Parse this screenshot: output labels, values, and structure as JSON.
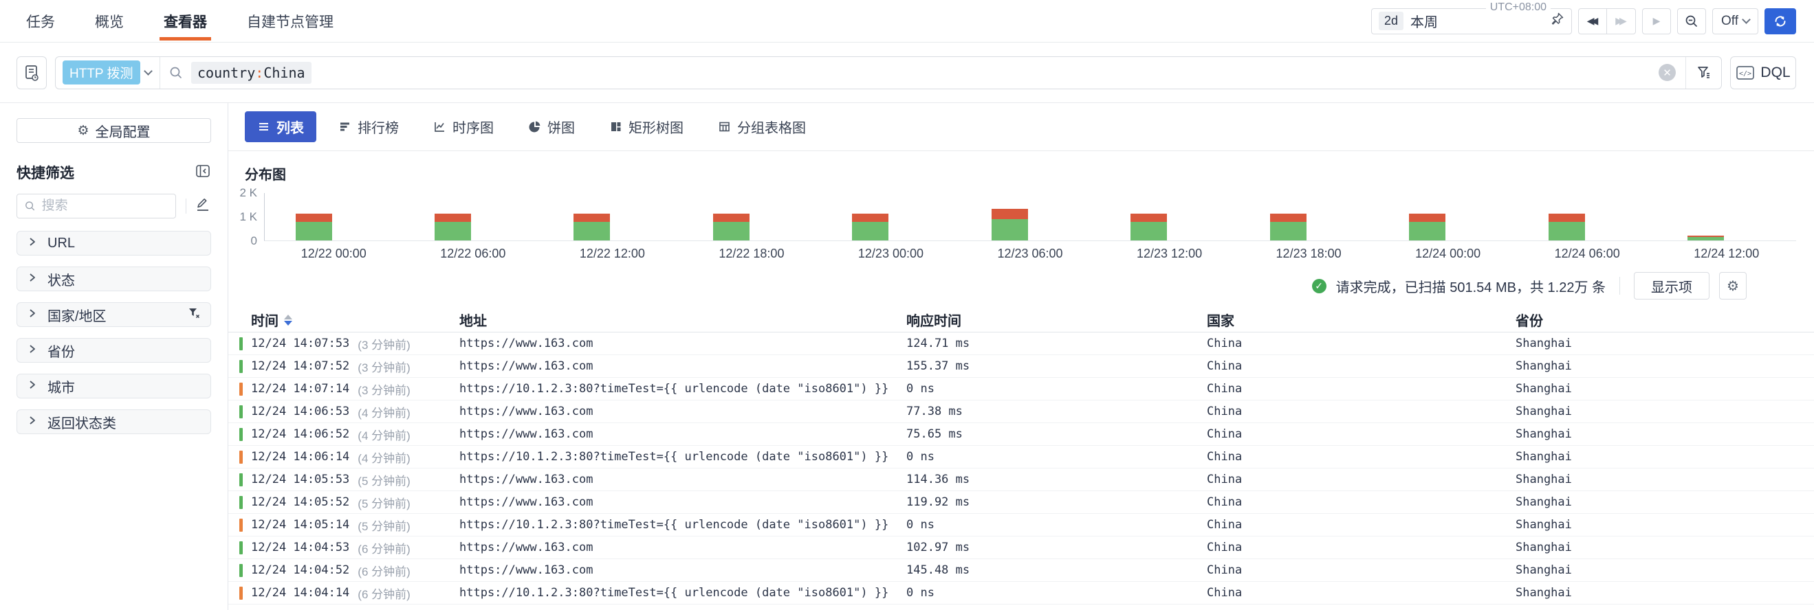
{
  "colors": {
    "accent-blue": "#3c5cc8",
    "refresh-blue": "#2f64d9",
    "nav-orange": "#e8662d",
    "chip-blue": "#7ec8ec",
    "success-green": "#57b25a",
    "error-orange": "#e9813c",
    "chart-green": "#6dbd6e",
    "chart-orange": "#d8583c",
    "check-green": "#43a956"
  },
  "topnav": {
    "items": [
      {
        "label": "任务",
        "active": false
      },
      {
        "label": "概览",
        "active": false
      },
      {
        "label": "查看器",
        "active": true
      },
      {
        "label": "自建节点管理",
        "active": false
      }
    ],
    "time_range": {
      "duration": "2d",
      "label": "本周",
      "timezone": "UTC+08:00"
    },
    "auto_refresh_label": "Off"
  },
  "searchbar": {
    "datasource_chip": "HTTP 拨测",
    "query": "country:China",
    "dql_label": "DQL"
  },
  "sidebar": {
    "global_config_label": "全局配置",
    "quick_filter_title": "快捷筛选",
    "search_placeholder": "搜索",
    "filters": [
      {
        "label": "URL",
        "has_filter": false
      },
      {
        "label": "状态",
        "has_filter": false
      },
      {
        "label": "国家/地区",
        "has_filter": true
      },
      {
        "label": "省份",
        "has_filter": false
      },
      {
        "label": "城市",
        "has_filter": false
      },
      {
        "label": "返回状态类",
        "has_filter": false
      }
    ]
  },
  "tabs": [
    {
      "label": "列表",
      "icon": "list-icon",
      "active": true
    },
    {
      "label": "排行榜",
      "icon": "ranking-icon",
      "active": false
    },
    {
      "label": "时序图",
      "icon": "timeseries-icon",
      "active": false
    },
    {
      "label": "饼图",
      "icon": "pie-icon",
      "active": false
    },
    {
      "label": "矩形树图",
      "icon": "treemap-icon",
      "active": false
    },
    {
      "label": "分组表格图",
      "icon": "grouped-table-icon",
      "active": false
    }
  ],
  "chart_data": {
    "type": "bar",
    "stacked": true,
    "title": "分布图",
    "categories": [
      "12/22 00:00",
      "12/22 06:00",
      "12/22 12:00",
      "12/22 18:00",
      "12/23 00:00",
      "12/23 06:00",
      "12/23 12:00",
      "12/23 18:00",
      "12/24 00:00",
      "12/24 06:00",
      "12/24 12:00"
    ],
    "series": [
      {
        "name": "success",
        "color_key": "chart-green",
        "values": [
          760,
          760,
          760,
          760,
          770,
          880,
          760,
          770,
          770,
          770,
          150
        ]
      },
      {
        "name": "error",
        "color_key": "chart-orange",
        "values": [
          350,
          350,
          350,
          350,
          350,
          430,
          350,
          350,
          350,
          350,
          50
        ]
      }
    ],
    "yticks": [
      {
        "label": "0",
        "value": 0
      },
      {
        "label": "1 K",
        "value": 1000
      },
      {
        "label": "2 K",
        "value": 2000
      }
    ],
    "ylim": [
      0,
      2000
    ],
    "grid": false,
    "legend": "none"
  },
  "status_bar": {
    "message": "请求完成，已扫描 501.54 MB，共 1.22万 条",
    "display_items_label": "显示项"
  },
  "table": {
    "columns": [
      "时间",
      "地址",
      "响应时间",
      "国家",
      "省份"
    ],
    "rows": [
      {
        "status": "success",
        "time": "12/24 14:07:53",
        "ago": "(3 分钟前)",
        "url": "https://www.163.com",
        "response_time": "124.71 ms",
        "country": "China",
        "province": "Shanghai"
      },
      {
        "status": "success",
        "time": "12/24 14:07:52",
        "ago": "(3 分钟前)",
        "url": "https://www.163.com",
        "response_time": "155.37 ms",
        "country": "China",
        "province": "Shanghai"
      },
      {
        "status": "error",
        "time": "12/24 14:07:14",
        "ago": "(3 分钟前)",
        "url": "https://10.1.2.3:80?timeTest={{ urlencode (date \"iso8601\") }}",
        "response_time": "0 ns",
        "country": "China",
        "province": "Shanghai"
      },
      {
        "status": "success",
        "time": "12/24 14:06:53",
        "ago": "(4 分钟前)",
        "url": "https://www.163.com",
        "response_time": "77.38 ms",
        "country": "China",
        "province": "Shanghai"
      },
      {
        "status": "success",
        "time": "12/24 14:06:52",
        "ago": "(4 分钟前)",
        "url": "https://www.163.com",
        "response_time": "75.65 ms",
        "country": "China",
        "province": "Shanghai"
      },
      {
        "status": "error",
        "time": "12/24 14:06:14",
        "ago": "(4 分钟前)",
        "url": "https://10.1.2.3:80?timeTest={{ urlencode (date \"iso8601\") }}",
        "response_time": "0 ns",
        "country": "China",
        "province": "Shanghai"
      },
      {
        "status": "success",
        "time": "12/24 14:05:53",
        "ago": "(5 分钟前)",
        "url": "https://www.163.com",
        "response_time": "114.36 ms",
        "country": "China",
        "province": "Shanghai"
      },
      {
        "status": "success",
        "time": "12/24 14:05:52",
        "ago": "(5 分钟前)",
        "url": "https://www.163.com",
        "response_time": "119.92 ms",
        "country": "China",
        "province": "Shanghai"
      },
      {
        "status": "error",
        "time": "12/24 14:05:14",
        "ago": "(5 分钟前)",
        "url": "https://10.1.2.3:80?timeTest={{ urlencode (date \"iso8601\") }}",
        "response_time": "0 ns",
        "country": "China",
        "province": "Shanghai"
      },
      {
        "status": "success",
        "time": "12/24 14:04:53",
        "ago": "(6 分钟前)",
        "url": "https://www.163.com",
        "response_time": "102.97 ms",
        "country": "China",
        "province": "Shanghai"
      },
      {
        "status": "success",
        "time": "12/24 14:04:52",
        "ago": "(6 分钟前)",
        "url": "https://www.163.com",
        "response_time": "145.48 ms",
        "country": "China",
        "province": "Shanghai"
      },
      {
        "status": "error",
        "time": "12/24 14:04:14",
        "ago": "(6 分钟前)",
        "url": "https://10.1.2.3:80?timeTest={{ urlencode (date \"iso8601\") }}",
        "response_time": "0 ns",
        "country": "China",
        "province": "Shanghai"
      }
    ]
  }
}
